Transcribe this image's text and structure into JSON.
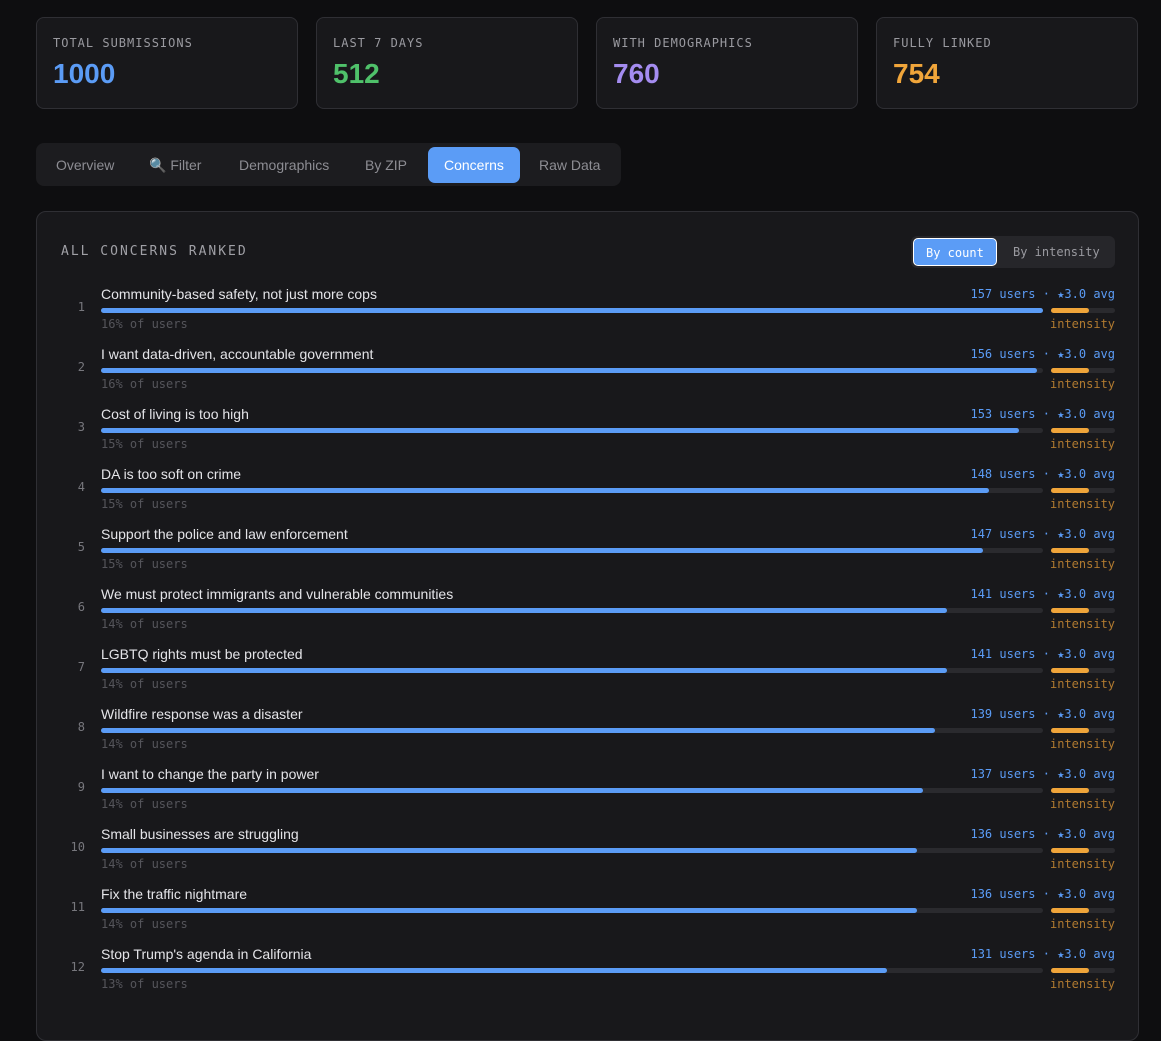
{
  "stats": [
    {
      "label": "TOTAL SUBMISSIONS",
      "value": 1000,
      "color": "#5b9cf6"
    },
    {
      "label": "LAST 7 DAYS",
      "value": 512,
      "color": "#4fc16a"
    },
    {
      "label": "WITH DEMOGRAPHICS",
      "value": 760,
      "color": "#a48cf0"
    },
    {
      "label": "FULLY LINKED",
      "value": 754,
      "color": "#f0a53a"
    }
  ],
  "tabs": [
    "Overview",
    "🔍 Filter",
    "Demographics",
    "By ZIP",
    "Concerns",
    "Raw Data"
  ],
  "active_tab": 4,
  "panel": {
    "title": "ALL CONCERNS RANKED",
    "sort_buttons": [
      "By count",
      "By intensity"
    ],
    "active_sort": 0,
    "separator": "·",
    "intensity_caption": "intensity",
    "rows": [
      {
        "rank": 1,
        "label": "Community-based safety, not just more cops",
        "count": 157,
        "count_label": "157 users",
        "avg_label": "★3.0 avg",
        "intensity": 3,
        "share_label": "16% of users"
      },
      {
        "rank": 2,
        "label": "I want data-driven, accountable government",
        "count": 156,
        "count_label": "156 users",
        "avg_label": "★3.0 avg",
        "intensity": 3,
        "share_label": "16% of users"
      },
      {
        "rank": 3,
        "label": "Cost of living is too high",
        "count": 153,
        "count_label": "153 users",
        "avg_label": "★3.0 avg",
        "intensity": 3,
        "share_label": "15% of users"
      },
      {
        "rank": 4,
        "label": "DA is too soft on crime",
        "count": 148,
        "count_label": "148 users",
        "avg_label": "★3.0 avg",
        "intensity": 3,
        "share_label": "15% of users"
      },
      {
        "rank": 5,
        "label": "Support the police and law enforcement",
        "count": 147,
        "count_label": "147 users",
        "avg_label": "★3.0 avg",
        "intensity": 3,
        "share_label": "15% of users"
      },
      {
        "rank": 6,
        "label": "We must protect immigrants and vulnerable communities",
        "count": 141,
        "count_label": "141 users",
        "avg_label": "★3.0 avg",
        "intensity": 3,
        "share_label": "14% of users"
      },
      {
        "rank": 7,
        "label": "LGBTQ rights must be protected",
        "count": 141,
        "count_label": "141 users",
        "avg_label": "★3.0 avg",
        "intensity": 3,
        "share_label": "14% of users"
      },
      {
        "rank": 8,
        "label": "Wildfire response was a disaster",
        "count": 139,
        "count_label": "139 users",
        "avg_label": "★3.0 avg",
        "intensity": 3,
        "share_label": "14% of users"
      },
      {
        "rank": 9,
        "label": "I want to change the party in power",
        "count": 137,
        "count_label": "137 users",
        "avg_label": "★3.0 avg",
        "intensity": 3,
        "share_label": "14% of users"
      },
      {
        "rank": 10,
        "label": "Small businesses are struggling",
        "count": 136,
        "count_label": "136 users",
        "avg_label": "★3.0 avg",
        "intensity": 3,
        "share_label": "14% of users"
      },
      {
        "rank": 11,
        "label": "Fix the traffic nightmare",
        "count": 136,
        "count_label": "136 users",
        "avg_label": "★3.0 avg",
        "intensity": 3,
        "share_label": "14% of users"
      },
      {
        "rank": 12,
        "label": "Stop Trump's agenda in California",
        "count": 131,
        "count_label": "131 users",
        "avg_label": "★3.0 avg",
        "intensity": 3,
        "share_label": "13% of users"
      }
    ]
  }
}
